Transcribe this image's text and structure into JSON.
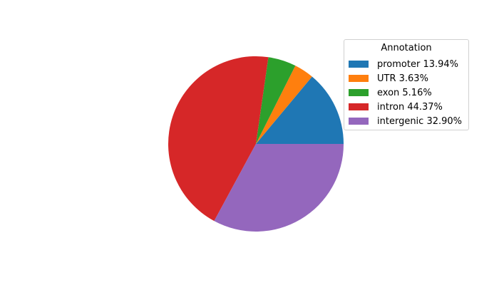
{
  "chart_data": {
    "type": "pie",
    "legend_title": "Annotation",
    "legend_position": "upper-right",
    "start_angle_deg": 0,
    "direction": "counterclockwise",
    "slices": [
      {
        "label": "promoter 13.94%",
        "value": 13.94,
        "color": "#1f77b4"
      },
      {
        "label": "UTR 3.63%",
        "value": 3.63,
        "color": "#ff7f0e"
      },
      {
        "label": "exon 5.16%",
        "value": 5.16,
        "color": "#2ca02c"
      },
      {
        "label": "intron 44.37%",
        "value": 44.37,
        "color": "#d62728"
      },
      {
        "label": "intergenic 32.90%",
        "value": 32.9,
        "color": "#9467bd"
      }
    ]
  }
}
